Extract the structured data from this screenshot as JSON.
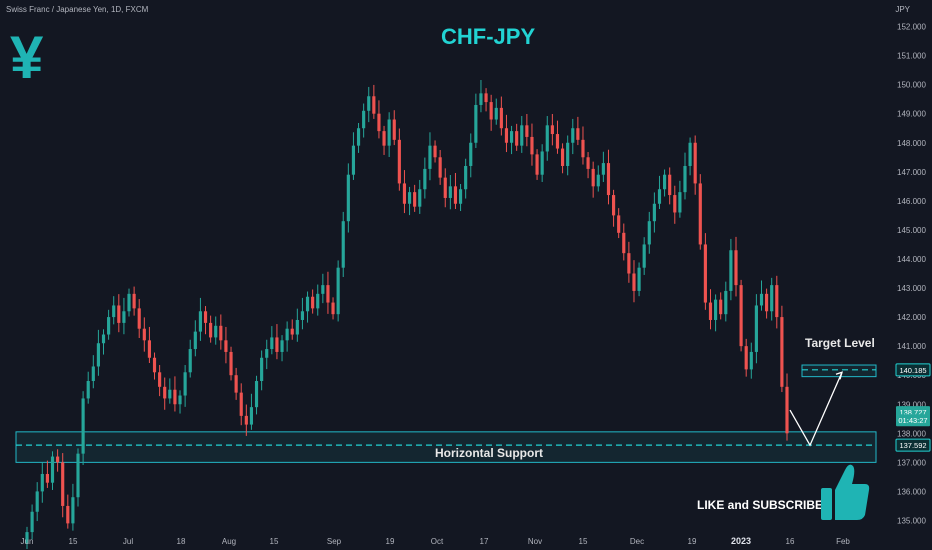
{
  "header": {
    "symbol_line": "Swiss Franc / Japanese Yen, 1D, FXCM",
    "unit": "JPY"
  },
  "title": "CHF-JPY",
  "icons": {
    "currency": "yen-icon",
    "like": "thumbs-up-icon",
    "currency_glyph": "¥"
  },
  "annotations": {
    "target": "Target Level",
    "support": "Horizontal Support",
    "cta": "LIKE and SUBSCRIBE"
  },
  "colors": {
    "up": "#26a69a",
    "down": "#ef5350",
    "accent": "#22d3d3",
    "background": "#131722"
  },
  "chart_data": {
    "type": "candlestick",
    "y_axis_labels": [
      "152.000",
      "151.000",
      "150.000",
      "149.000",
      "148.000",
      "147.000",
      "146.000",
      "145.000",
      "144.000",
      "143.000",
      "142.000",
      "141.000",
      "140.000",
      "139.000",
      "138.000",
      "137.000",
      "136.000",
      "135.000"
    ],
    "x_axis_labels": [
      "Jun",
      "15",
      "Jul",
      "18",
      "Aug",
      "15",
      "Sep",
      "19",
      "Oct",
      "17",
      "Nov",
      "15",
      "Dec",
      "19",
      "2023",
      "16",
      "Feb"
    ],
    "ylim": [
      134.5,
      152.5
    ],
    "price_tags": [
      {
        "text": "140.185",
        "value": 140.185,
        "style": "outline"
      },
      {
        "text": "138.727",
        "value": 138.727,
        "style": "green"
      },
      {
        "text": "01:43:27",
        "value": 138.45,
        "style": "green"
      },
      {
        "text": "137.592",
        "value": 137.592,
        "style": "outline"
      }
    ],
    "zones": [
      {
        "name": "Horizontal Support",
        "low": 137.0,
        "high": 138.05,
        "level": 137.592
      },
      {
        "name": "Target Level",
        "low": 139.95,
        "high": 140.35,
        "level": 140.185
      }
    ],
    "projection": [
      {
        "date": "Jan 18",
        "value": 138.8
      },
      {
        "date": "Jan 25",
        "value": 137.59
      },
      {
        "date": "Feb 5",
        "value": 140.1
      }
    ],
    "closes": [
      134.6,
      135.3,
      136.0,
      136.6,
      136.3,
      137.2,
      137.0,
      135.5,
      134.9,
      135.8,
      137.3,
      139.2,
      139.8,
      140.3,
      141.1,
      141.4,
      142.0,
      142.4,
      141.8,
      142.2,
      142.8,
      142.3,
      141.6,
      141.2,
      140.6,
      140.1,
      139.6,
      139.2,
      139.5,
      139.0,
      139.3,
      140.1,
      140.9,
      141.5,
      142.2,
      141.8,
      141.3,
      141.7,
      141.2,
      140.8,
      140.0,
      139.4,
      138.6,
      138.3,
      138.9,
      139.8,
      140.6,
      140.9,
      141.3,
      140.8,
      141.2,
      141.6,
      141.4,
      141.9,
      142.2,
      142.7,
      142.3,
      142.8,
      143.1,
      142.5,
      142.1,
      143.7,
      145.3,
      146.9,
      147.9,
      148.5,
      149.1,
      149.6,
      149.0,
      148.4,
      147.9,
      148.8,
      148.1,
      146.6,
      145.9,
      146.3,
      145.8,
      146.4,
      147.1,
      147.9,
      147.5,
      146.8,
      146.1,
      146.5,
      145.9,
      146.4,
      147.2,
      148.0,
      149.3,
      149.7,
      149.4,
      148.8,
      149.2,
      148.5,
      148.0,
      148.4,
      147.9,
      148.6,
      148.2,
      147.6,
      146.9,
      147.7,
      148.6,
      148.3,
      147.8,
      147.2,
      148.0,
      148.5,
      148.1,
      147.5,
      147.1,
      146.5,
      146.9,
      147.3,
      146.2,
      145.5,
      144.9,
      144.2,
      143.5,
      142.9,
      143.7,
      144.5,
      145.3,
      145.9,
      146.4,
      146.9,
      146.2,
      145.6,
      146.3,
      147.2,
      148.0,
      146.6,
      144.5,
      142.5,
      141.9,
      142.6,
      142.1,
      142.9,
      144.3,
      143.1,
      141.0,
      140.2,
      140.8,
      142.4,
      142.8,
      142.2,
      143.1,
      142.0,
      139.6,
      138.0
    ]
  }
}
